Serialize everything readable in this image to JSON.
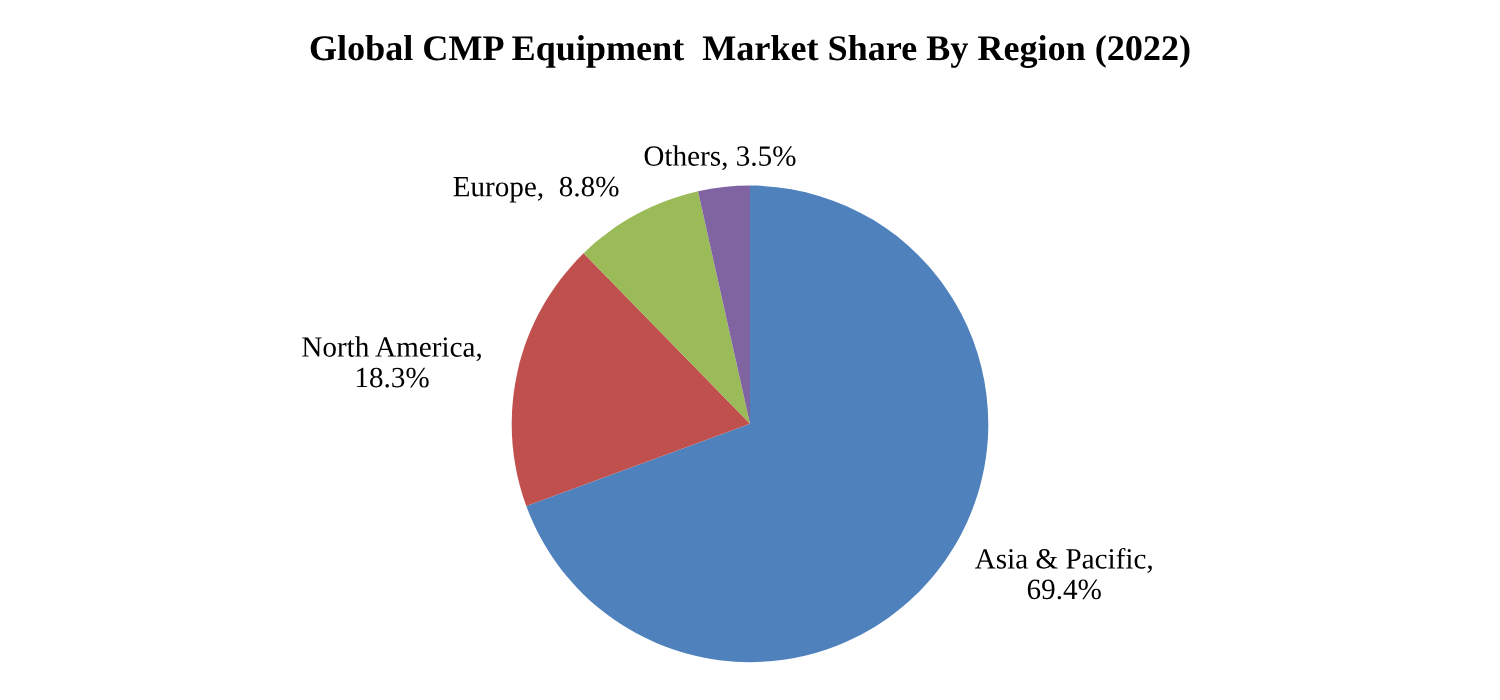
{
  "chart_data": {
    "type": "pie",
    "title": "Global CMP Equipment  Market Share By Region (2022)",
    "categories": [
      "Asia & Pacific",
      "North America",
      "Europe",
      "Others"
    ],
    "values": [
      69.4,
      18.3,
      8.8,
      3.5
    ],
    "colors": [
      "#4f81bd",
      "#c0504d",
      "#9bbb59",
      "#8064a2"
    ],
    "value_labels": [
      ",\n69.4%",
      ",\n18.3%",
      ",  8.8%",
      ", 3.5%"
    ]
  }
}
